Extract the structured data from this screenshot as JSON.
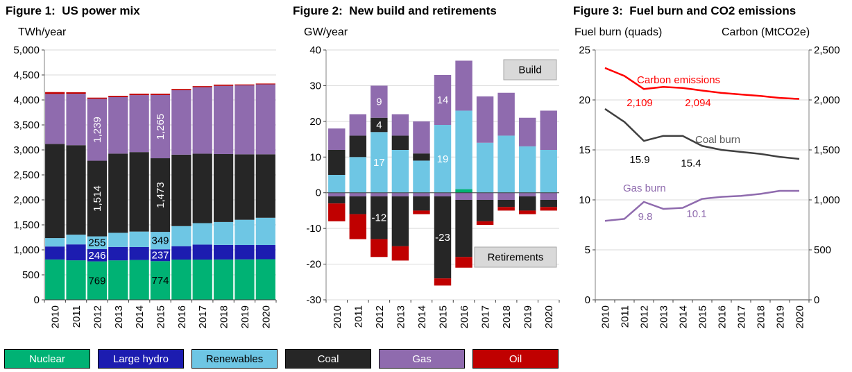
{
  "chart_data": [
    {
      "id": "fig1",
      "type": "bar",
      "stacked": true,
      "title": "Figure 1:  US power mix",
      "ylabel": "TWh/year",
      "categories": [
        "2010",
        "2011",
        "2012",
        "2013",
        "2014",
        "2015",
        "2016",
        "2017",
        "2018",
        "2019",
        "2020"
      ],
      "ylim": [
        0,
        5000
      ],
      "ytick_step": 500,
      "grid": true,
      "series": [
        {
          "name": "Nuclear",
          "color": "#00b274",
          "values": [
            807,
            790,
            769,
            789,
            797,
            774,
            805,
            805,
            807,
            809,
            812
          ]
        },
        {
          "name": "Large hydro",
          "color": "#1c1cb0",
          "values": [
            260,
            319,
            246,
            269,
            259,
            237,
            268,
            300,
            292,
            288,
            285
          ]
        },
        {
          "name": "Renewables",
          "color": "#6ec6e4",
          "values": [
            168,
            195,
            255,
            283,
            310,
            349,
            402,
            430,
            458,
            505,
            545
          ]
        },
        {
          "name": "Coal",
          "color": "#262626",
          "values": [
            1885,
            1790,
            1514,
            1585,
            1590,
            1473,
            1430,
            1390,
            1360,
            1310,
            1270
          ]
        },
        {
          "name": "Gas",
          "color": "#8f6bae",
          "values": [
            1000,
            1030,
            1239,
            1130,
            1140,
            1265,
            1290,
            1330,
            1365,
            1380,
            1400
          ]
        },
        {
          "name": "Oil",
          "color": "#c00000",
          "values": [
            37,
            30,
            23,
            27,
            30,
            28,
            24,
            21,
            25,
            18,
            16
          ]
        }
      ],
      "bar_labels": [
        {
          "year": "2012",
          "series": "Gas",
          "text": "1,239",
          "color": "#ffffff",
          "rotate": true
        },
        {
          "year": "2012",
          "series": "Coal",
          "text": "1,514",
          "color": "#ffffff",
          "rotate": true
        },
        {
          "year": "2012",
          "series": "Renewables",
          "text": "255",
          "color": "#000000"
        },
        {
          "year": "2012",
          "series": "Large hydro",
          "text": "246",
          "color": "#ffffff"
        },
        {
          "year": "2012",
          "series": "Nuclear",
          "text": "769",
          "color": "#000000"
        },
        {
          "year": "2015",
          "series": "Gas",
          "text": "1,265",
          "color": "#ffffff",
          "rotate": true
        },
        {
          "year": "2015",
          "series": "Coal",
          "text": "1,473",
          "color": "#ffffff",
          "rotate": true
        },
        {
          "year": "2015",
          "series": "Renewables",
          "text": "349",
          "color": "#000000"
        },
        {
          "year": "2015",
          "series": "Large hydro",
          "text": "237",
          "color": "#ffffff"
        },
        {
          "year": "2015",
          "series": "Nuclear",
          "text": "774",
          "color": "#000000"
        }
      ]
    },
    {
      "id": "fig2",
      "type": "bar",
      "stacked": true,
      "title": "Figure 2:  New build and retirements",
      "ylabel": "GW/year",
      "categories": [
        "2010",
        "2011",
        "2012",
        "2013",
        "2014",
        "2015",
        "2016",
        "2017",
        "2018",
        "2019",
        "2020"
      ],
      "ylim": [
        -30,
        40
      ],
      "ytick_step": 10,
      "grid": true,
      "series": [
        {
          "name": "Nuclear",
          "color": "#00b274",
          "values": [
            0,
            0,
            0,
            0,
            0,
            0,
            1,
            0,
            0,
            0,
            0
          ]
        },
        {
          "name": "Renewables",
          "color": "#6ec6e4",
          "values": [
            5,
            10,
            17,
            12,
            9,
            19,
            22,
            14,
            16,
            13,
            12
          ]
        },
        {
          "name": "Coal",
          "color": "#262626",
          "values": [
            7,
            6,
            4,
            4,
            2,
            0,
            0,
            0,
            0,
            0,
            0
          ]
        },
        {
          "name": "Gas",
          "color": "#8f6bae",
          "values": [
            6,
            6,
            9,
            6,
            9,
            14,
            14,
            13,
            12,
            8,
            11
          ]
        },
        {
          "name": "Gas retirements",
          "color": "#8f6bae",
          "values": [
            -1,
            -1,
            -1,
            -1,
            -1,
            -1,
            -2,
            -2,
            -2,
            -1,
            -2
          ]
        },
        {
          "name": "Coal retirements",
          "color": "#262626",
          "values": [
            -2,
            -5,
            -12,
            -14,
            -4,
            -23,
            -16,
            -6,
            -2,
            -4,
            -2
          ]
        },
        {
          "name": "Oil retirements",
          "color": "#c00000",
          "values": [
            -5,
            -7,
            -5,
            -4,
            -1,
            -2,
            -3,
            -1,
            -1,
            -1,
            -1
          ]
        }
      ],
      "bar_labels": [
        {
          "year": "2012",
          "series": "Gas",
          "text": "9",
          "color": "#ffffff"
        },
        {
          "year": "2012",
          "series": "Coal",
          "text": "4",
          "color": "#ffffff"
        },
        {
          "year": "2012",
          "series": "Renewables",
          "text": "17",
          "color": "#ffffff"
        },
        {
          "year": "2012",
          "series": "Coal retirements",
          "text": "-12",
          "color": "#ffffff"
        },
        {
          "year": "2015",
          "series": "Gas",
          "text": "14",
          "color": "#ffffff"
        },
        {
          "year": "2015",
          "series": "Renewables",
          "text": "19",
          "color": "#ffffff"
        },
        {
          "year": "2015",
          "series": "Coal retirements",
          "text": "-23",
          "color": "#ffffff"
        }
      ],
      "callouts": [
        {
          "id": "build",
          "text": "Build",
          "bg": "#d9d9d9"
        },
        {
          "id": "retirements",
          "text": "Retirements",
          "bg": "#d9d9d9"
        }
      ]
    },
    {
      "id": "fig3",
      "type": "line",
      "title": "Figure 3:  Fuel burn and CO2 emissions",
      "x": [
        "2010",
        "2011",
        "2012",
        "2013",
        "2014",
        "2015",
        "2016",
        "2017",
        "2018",
        "2019",
        "2020"
      ],
      "left_axis": {
        "label": "Fuel burn (quads)",
        "ylim": [
          0,
          25
        ],
        "tick_step": 5
      },
      "right_axis": {
        "label": "Carbon (MtCO2e)",
        "ylim": [
          0,
          2500
        ],
        "tick_step": 500
      },
      "grid": true,
      "series": [
        {
          "name": "Carbon emissions",
          "axis": "right",
          "color": "#ff0000",
          "values": [
            2320,
            2240,
            2109,
            2130,
            2120,
            2094,
            2070,
            2055,
            2040,
            2020,
            2010
          ]
        },
        {
          "name": "Coal burn",
          "axis": "left",
          "color": "#404040",
          "values": [
            19.1,
            17.8,
            15.9,
            16.4,
            16.4,
            15.4,
            15.0,
            14.8,
            14.6,
            14.3,
            14.1
          ]
        },
        {
          "name": "Gas burn",
          "axis": "left",
          "color": "#8f6bae",
          "values": [
            7.9,
            8.1,
            9.8,
            9.1,
            9.2,
            10.1,
            10.3,
            10.4,
            10.6,
            10.9,
            10.9
          ]
        }
      ],
      "annotations": [
        {
          "id": "carbon-label",
          "text": "Carbon emissions",
          "color": "#ff0000"
        },
        {
          "id": "carbon-2012",
          "text": "2,109",
          "color": "#ff0000"
        },
        {
          "id": "carbon-2015",
          "text": "2,094",
          "color": "#ff0000"
        },
        {
          "id": "coal-label",
          "text": "Coal burn",
          "color": "#595959"
        },
        {
          "id": "coal-2012",
          "text": "15.9",
          "color": "#000000"
        },
        {
          "id": "coal-2015",
          "text": "15.4",
          "color": "#000000"
        },
        {
          "id": "gas-label",
          "text": "Gas burn",
          "color": "#8f6bae"
        },
        {
          "id": "gas-2012",
          "text": "9.8",
          "color": "#8f6bae"
        },
        {
          "id": "gas-2015",
          "text": "10.1",
          "color": "#8f6bae"
        }
      ]
    }
  ],
  "legend": {
    "items": [
      {
        "label": "Nuclear",
        "color": "#00b274",
        "text_color": "#ffffff"
      },
      {
        "label": "Large hydro",
        "color": "#1c1cb0",
        "text_color": "#ffffff"
      },
      {
        "label": "Renewables",
        "color": "#6ec6e4",
        "text_color": "#000000"
      },
      {
        "label": "Coal",
        "color": "#262626",
        "text_color": "#ffffff"
      },
      {
        "label": "Gas",
        "color": "#8f6bae",
        "text_color": "#ffffff"
      },
      {
        "label": "Oil",
        "color": "#c00000",
        "text_color": "#ffffff"
      }
    ]
  }
}
